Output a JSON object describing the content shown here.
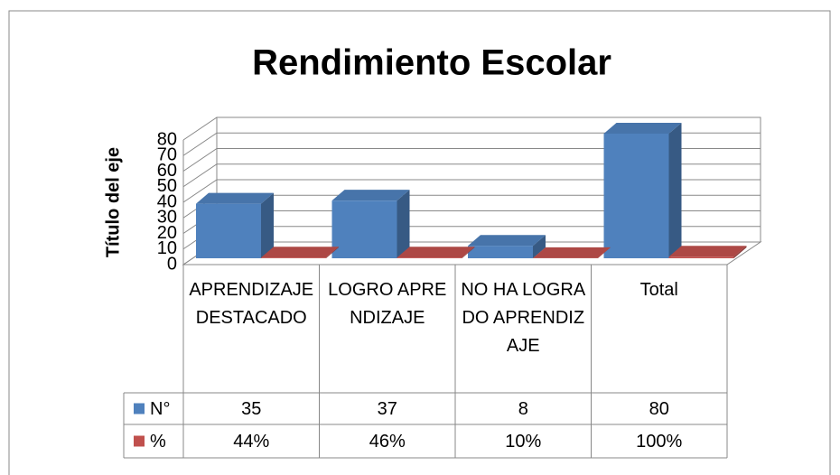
{
  "chart_data": {
    "type": "bar3d",
    "title": "Rendimiento Escolar",
    "y_axis_label": "Título del eje",
    "categories": [
      "APRENDIZAJEDESTACADO",
      "LOGRO APRENDIZAJE",
      "NO HA LOGRADO APRENDIZAJE",
      "Total"
    ],
    "series": [
      {
        "name": "N°",
        "color": "#4f81bd",
        "values": [
          35,
          37,
          8,
          80
        ]
      },
      {
        "name": "%",
        "color": "#c0504d",
        "values": [
          0.44,
          0.46,
          0.1,
          1
        ],
        "value_labels": [
          "44%",
          "46%",
          "10%",
          "100%"
        ]
      }
    ],
    "ylim": [
      0,
      80
    ],
    "yticks": [
      0,
      10,
      20,
      30,
      40,
      50,
      60,
      70,
      80
    ],
    "grid": true,
    "data_table": true
  }
}
